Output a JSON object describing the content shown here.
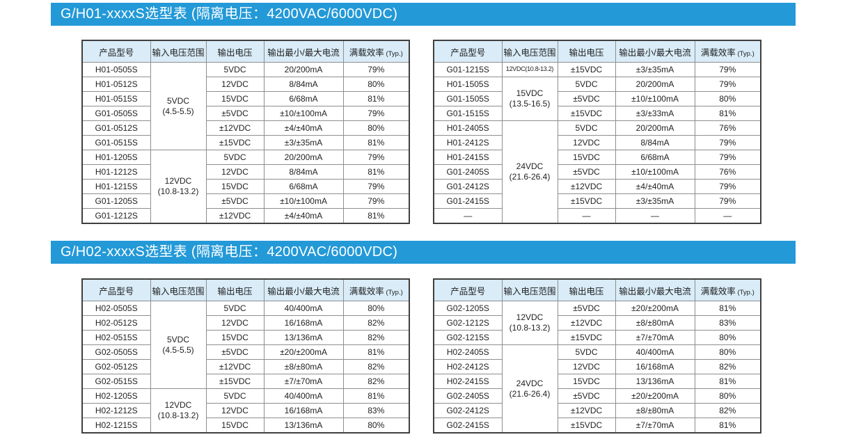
{
  "colors": {
    "banner_bg": "#2399d7",
    "banner_text": "#ffffff",
    "table_header_bg": "#d9ecf8",
    "table_outer_border": "#3f3f3f",
    "table_inner_border": "#8e8e8e",
    "table_text": "#222222"
  },
  "columns": [
    "产品型号",
    "输入电压范围",
    "输出电压",
    "输出最小/最大电流",
    "满载效率"
  ],
  "columns_typ_suffix": "(Typ.)",
  "sections": [
    {
      "title": "G/H01-xxxxS选型表 (隔离电压：4200VAC/6000VDC)",
      "tables": [
        {
          "groups": [
            {
              "input": [
                "5VDC",
                "(4.5-5.5)"
              ],
              "rows": [
                [
                  "H01-0505S",
                  "5VDC",
                  "20/200mA",
                  "79%"
                ],
                [
                  "H01-0512S",
                  "12VDC",
                  "8/84mA",
                  "80%"
                ],
                [
                  "H01-0515S",
                  "15VDC",
                  "6/68mA",
                  "81%"
                ],
                [
                  "G01-0505S",
                  "±5VDC",
                  "±10/±100mA",
                  "79%"
                ],
                [
                  "G01-0512S",
                  "±12VDC",
                  "±4/±40mA",
                  "80%"
                ],
                [
                  "G01-0515S",
                  "±15VDC",
                  "±3/±35mA",
                  "81%"
                ]
              ]
            },
            {
              "input": [
                "12VDC",
                "(10.8-13.2)"
              ],
              "rows": [
                [
                  "H01-1205S",
                  "5VDC",
                  "20/200mA",
                  "79%"
                ],
                [
                  "H01-1212S",
                  "12VDC",
                  "8/84mA",
                  "81%"
                ],
                [
                  "H01-1215S",
                  "15VDC",
                  "6/68mA",
                  "79%"
                ],
                [
                  "G01-1205S",
                  "±5VDC",
                  "±10/±100mA",
                  "79%"
                ],
                [
                  "G01-1212S",
                  "±12VDC",
                  "±4/±40mA",
                  "81%"
                ]
              ]
            }
          ]
        },
        {
          "groups": [
            {
              "input": [
                "12VDC(10.8-13.2)"
              ],
              "input_small": true,
              "rows": [
                [
                  "G01-1215S",
                  "±15VDC",
                  "±3/±35mA",
                  "79%"
                ]
              ]
            },
            {
              "input": [
                "15VDC",
                "(13.5-16.5)"
              ],
              "rows": [
                [
                  "H01-1505S",
                  "5VDC",
                  "20/200mA",
                  "79%"
                ],
                [
                  "G01-1505S",
                  "±5VDC",
                  "±10/±100mA",
                  "80%"
                ],
                [
                  "G01-1515S",
                  "±15VDC",
                  "±3/±33mA",
                  "81%"
                ]
              ]
            },
            {
              "input": [
                "24VDC",
                "(21.6-26.4)"
              ],
              "rows": [
                [
                  "H01-2405S",
                  "5VDC",
                  "20/200mA",
                  "76%"
                ],
                [
                  "H01-2412S",
                  "12VDC",
                  "8/84mA",
                  "79%"
                ],
                [
                  "H01-2415S",
                  "15VDC",
                  "6/68mA",
                  "79%"
                ],
                [
                  "G01-2405S",
                  "±5VDC",
                  "±10/±100mA",
                  "76%"
                ],
                [
                  "G01-2412S",
                  "±12VDC",
                  "±4/±40mA",
                  "79%"
                ],
                [
                  "G01-2415S",
                  "±15VDC",
                  "±3/±35mA",
                  "79%"
                ],
                [
                  "—",
                  "—",
                  "—",
                  "—"
                ]
              ]
            }
          ]
        }
      ]
    },
    {
      "title": "G/H02-xxxxS选型表 (隔离电压：4200VAC/6000VDC)",
      "tables": [
        {
          "groups": [
            {
              "input": [
                "5VDC",
                "(4.5-5.5)"
              ],
              "rows": [
                [
                  "H02-0505S",
                  "5VDC",
                  "40/400mA",
                  "80%"
                ],
                [
                  "H02-0512S",
                  "12VDC",
                  "16/168mA",
                  "82%"
                ],
                [
                  "H02-0515S",
                  "15VDC",
                  "13/136mA",
                  "82%"
                ],
                [
                  "G02-0505S",
                  "±5VDC",
                  "±20/±200mA",
                  "81%"
                ],
                [
                  "G02-0512S",
                  "±12VDC",
                  "±8/±80mA",
                  "82%"
                ],
                [
                  "G02-0515S",
                  "±15VDC",
                  "±7/±70mA",
                  "82%"
                ]
              ]
            },
            {
              "input": [
                "12VDC",
                "(10.8-13.2)"
              ],
              "rows": [
                [
                  "H02-1205S",
                  "5VDC",
                  "40/400mA",
                  "81%"
                ],
                [
                  "H02-1212S",
                  "12VDC",
                  "16/168mA",
                  "83%"
                ],
                [
                  "H02-1215S",
                  "15VDC",
                  "13/136mA",
                  "80%"
                ]
              ]
            }
          ]
        },
        {
          "groups": [
            {
              "input": [
                "12VDC",
                "(10.8-13.2)"
              ],
              "rows": [
                [
                  "G02-1205S",
                  "±5VDC",
                  "±20/±200mA",
                  "81%"
                ],
                [
                  "G02-1212S",
                  "±12VDC",
                  "±8/±80mA",
                  "83%"
                ],
                [
                  "G02-1215S",
                  "±15VDC",
                  "±7/±70mA",
                  "80%"
                ]
              ]
            },
            {
              "input": [
                "24VDC",
                "(21.6-26.4)"
              ],
              "rows": [
                [
                  "H02-2405S",
                  "5VDC",
                  "40/400mA",
                  "80%"
                ],
                [
                  "H02-2412S",
                  "12VDC",
                  "16/168mA",
                  "82%"
                ],
                [
                  "H02-2415S",
                  "15VDC",
                  "13/136mA",
                  "81%"
                ],
                [
                  "G02-2405S",
                  "±5VDC",
                  "±20/±200mA",
                  "80%"
                ],
                [
                  "G02-2412S",
                  "±12VDC",
                  "±8/±80mA",
                  "82%"
                ],
                [
                  "G02-2415S",
                  "±15VDC",
                  "±7/±70mA",
                  "81%"
                ]
              ]
            }
          ]
        }
      ]
    }
  ]
}
